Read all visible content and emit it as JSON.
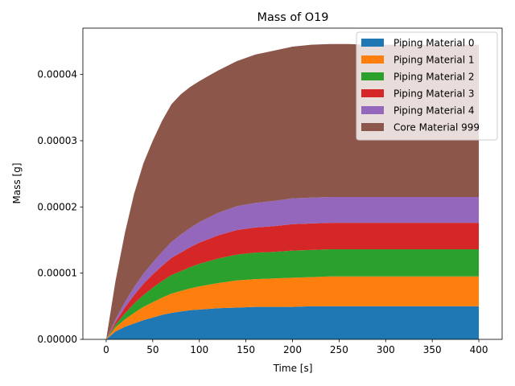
{
  "chart_data": {
    "type": "area",
    "stacked": true,
    "title": "Mass of O19",
    "xlabel": "Time [s]",
    "ylabel": "Mass [g]",
    "xlim": [
      -25,
      425
    ],
    "ylim": [
      0,
      4.7e-05
    ],
    "xticks": [
      0,
      50,
      100,
      150,
      200,
      250,
      300,
      350,
      400
    ],
    "yticks": [
      0,
      1e-05,
      2e-05,
      3e-05,
      4e-05
    ],
    "ytick_labels": [
      "0.00000",
      "0.00001",
      "0.00002",
      "0.00003",
      "0.00004"
    ],
    "legend_position": "top-right",
    "x": [
      0,
      10,
      20,
      30,
      40,
      50,
      60,
      70,
      80,
      90,
      100,
      120,
      140,
      160,
      180,
      200,
      220,
      240,
      260,
      280,
      300,
      320,
      340,
      360,
      380,
      400
    ],
    "series": [
      {
        "name": "Piping Material 0",
        "color": "#1f77b4",
        "values": [
          0,
          1.2e-06,
          1.9e-06,
          2.4e-06,
          2.9e-06,
          3.3e-06,
          3.7e-06,
          4e-06,
          4.2e-06,
          4.4e-06,
          4.5e-06,
          4.7e-06,
          4.8e-06,
          4.9e-06,
          4.9e-06,
          4.9e-06,
          5e-06,
          5e-06,
          5e-06,
          5e-06,
          5e-06,
          5e-06,
          5e-06,
          5e-06,
          5e-06,
          5e-06
        ]
      },
      {
        "name": "Piping Material 1",
        "color": "#ff7f0e",
        "values": [
          0,
          6e-07,
          1.1e-06,
          1.6e-06,
          2e-06,
          2.3e-06,
          2.6e-06,
          2.9e-06,
          3.1e-06,
          3.3e-06,
          3.5e-06,
          3.8e-06,
          4.1e-06,
          4.2e-06,
          4.3e-06,
          4.4e-06,
          4.4e-06,
          4.5e-06,
          4.5e-06,
          4.5e-06,
          4.5e-06,
          4.5e-06,
          4.5e-06,
          4.5e-06,
          4.5e-06,
          4.5e-06
        ]
      },
      {
        "name": "Piping Material 2",
        "color": "#2ca02c",
        "values": [
          0,
          4e-07,
          9e-07,
          1.4e-06,
          1.8e-06,
          2.2e-06,
          2.5e-06,
          2.8e-06,
          3e-06,
          3.2e-06,
          3.4e-06,
          3.7e-06,
          3.9e-06,
          4e-06,
          4e-06,
          4.1e-06,
          4.1e-06,
          4.1e-06,
          4.1e-06,
          4.1e-06,
          4.1e-06,
          4.1e-06,
          4.1e-06,
          4.1e-06,
          4.1e-06,
          4.1e-06
        ]
      },
      {
        "name": "Piping Material 3",
        "color": "#d62728",
        "values": [
          0,
          4e-07,
          9e-07,
          1.3e-06,
          1.7e-06,
          2e-06,
          2.3e-06,
          2.6e-06,
          2.8e-06,
          3e-06,
          3.2e-06,
          3.5e-06,
          3.7e-06,
          3.8e-06,
          3.9e-06,
          4e-06,
          4e-06,
          4e-06,
          4e-06,
          4e-06,
          4e-06,
          4e-06,
          4e-06,
          4e-06,
          4e-06,
          4e-06
        ]
      },
      {
        "name": "Piping Material 4",
        "color": "#9467bd",
        "values": [
          0,
          4e-07,
          8e-07,
          1.2e-06,
          1.5e-06,
          1.8e-06,
          2.1e-06,
          2.4e-06,
          2.7e-06,
          2.9e-06,
          3.1e-06,
          3.4e-06,
          3.6e-06,
          3.7e-06,
          3.8e-06,
          3.9e-06,
          3.9e-06,
          3.9e-06,
          3.9e-06,
          3.9e-06,
          3.9e-06,
          3.9e-06,
          3.9e-06,
          3.9e-06,
          3.9e-06,
          3.9e-06
        ]
      },
      {
        "name": "Core Material 999",
        "color": "#8c564b",
        "values": [
          0,
          5.8e-06,
          1.04e-05,
          1.41e-05,
          1.67e-05,
          1.84e-05,
          1.98e-05,
          2.08e-05,
          2.12e-05,
          2.13e-05,
          2.13e-05,
          2.15e-05,
          2.19e-05,
          2.24e-05,
          2.27e-05,
          2.29e-05,
          2.31e-05,
          2.31e-05,
          2.31e-05,
          2.3e-05,
          2.3e-05,
          2.3e-05,
          2.3e-05,
          2.3e-05,
          2.3e-05,
          2.3e-05
        ]
      }
    ]
  }
}
